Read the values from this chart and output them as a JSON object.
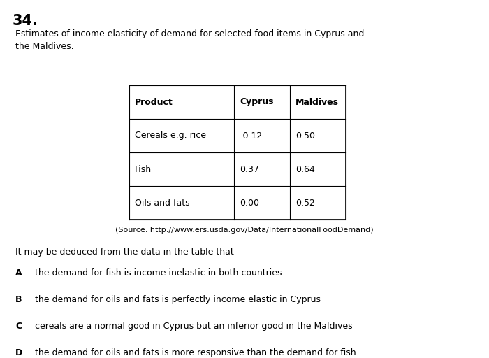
{
  "question_number": "34.",
  "intro_text": "Estimates of income elasticity of demand for selected food items in Cyprus and\nthe Maldives.",
  "table": {
    "headers": [
      "Product",
      "Cyprus",
      "Maldives"
    ],
    "rows": [
      [
        "Cereals e.g. rice",
        "-0.12",
        "0.50"
      ],
      [
        "Fish",
        "0.37",
        "0.64"
      ],
      [
        "Oils and fats",
        "0.00",
        "0.52"
      ]
    ]
  },
  "source_text": "(Source: http://www.ers.usda.gov/Data/InternationalFoodDemand)",
  "deduction_text": "It may be deduced from the data in the table that",
  "options": [
    {
      "letter": "A",
      "text": "the demand for fish is income inelastic in both countries"
    },
    {
      "letter": "B",
      "text": "the demand for oils and fats is perfectly income elastic in Cyprus"
    },
    {
      "letter": "C",
      "text": "cereals are a normal good in Cyprus but an inferior good in the Maldives"
    },
    {
      "letter": "D",
      "text": "the demand for oils and fats is more responsive than the demand for fish\nto a change in income in the Maldives"
    }
  ],
  "bg_color": "#ffffff",
  "text_color": "#000000",
  "font_size_question": 15,
  "font_size_intro": 9.0,
  "font_size_table": 9.0,
  "font_size_source": 8.0,
  "font_size_deduction": 9.0,
  "font_size_options": 9.0
}
